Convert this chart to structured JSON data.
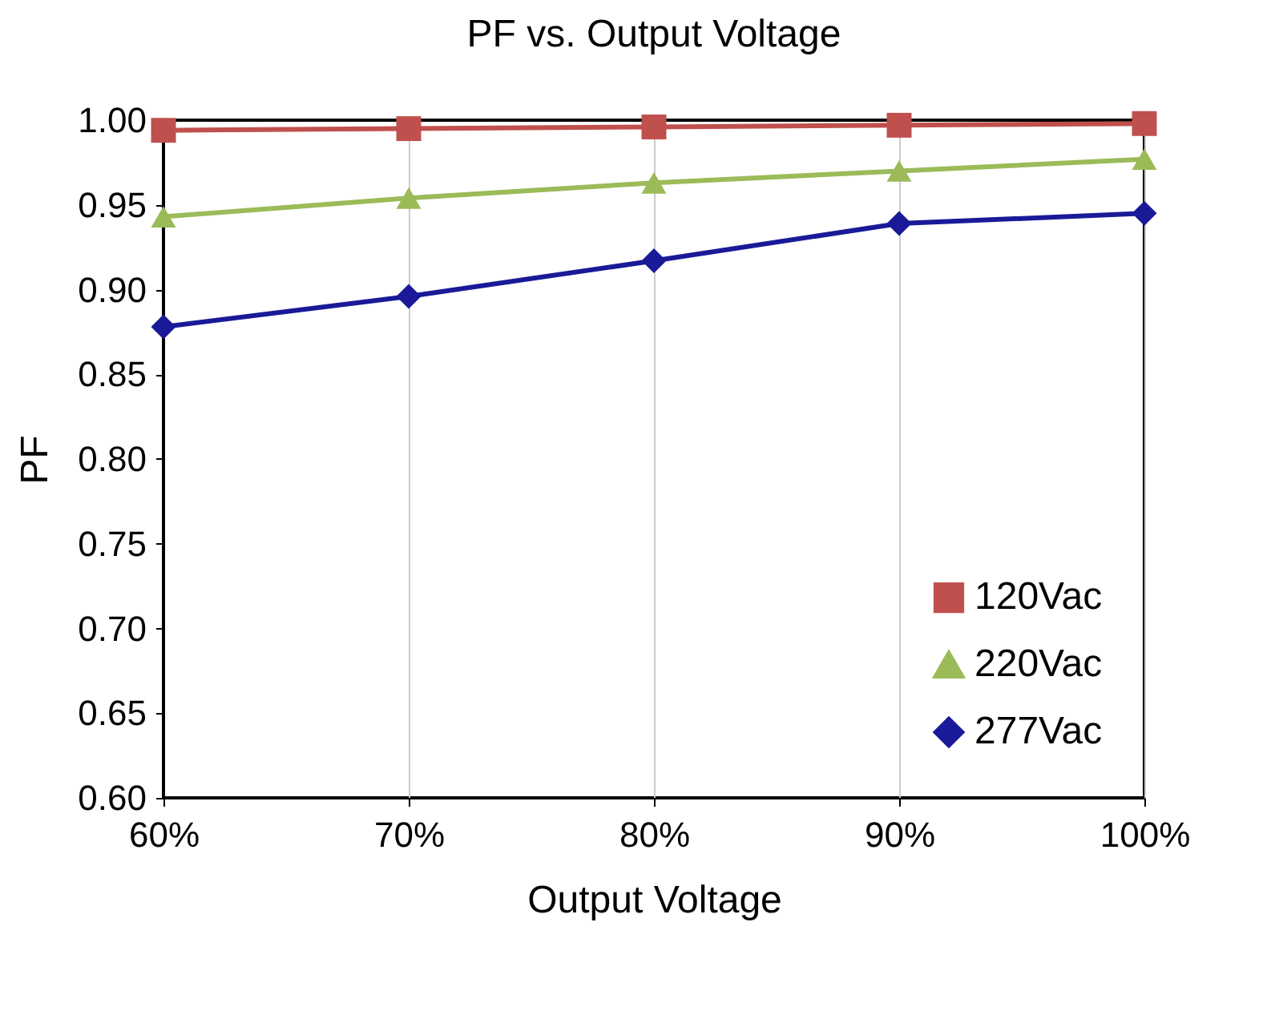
{
  "chart_data": {
    "type": "line",
    "title": "PF vs. Output Voltage",
    "xlabel": "Output Voltage",
    "ylabel": "PF",
    "categories": [
      "60%",
      "70%",
      "80%",
      "90%",
      "100%"
    ],
    "series": [
      {
        "name": "120Vac",
        "color": "#c0504d",
        "marker": "square",
        "values": [
          0.994,
          0.995,
          0.996,
          0.997,
          0.998
        ]
      },
      {
        "name": "220Vac",
        "color": "#9bbb59",
        "marker": "triangle",
        "values": [
          0.943,
          0.954,
          0.963,
          0.97,
          0.977
        ]
      },
      {
        "name": "277Vac",
        "color": "#1a1a99",
        "marker": "diamond",
        "values": [
          0.878,
          0.896,
          0.917,
          0.939,
          0.945
        ]
      }
    ],
    "ylim": [
      0.6,
      1.0
    ],
    "yticks": [
      {
        "value": 0.6,
        "label": "0.60"
      },
      {
        "value": 0.65,
        "label": "0.65"
      },
      {
        "value": 0.7,
        "label": "0.70"
      },
      {
        "value": 0.75,
        "label": "0.75"
      },
      {
        "value": 0.8,
        "label": "0.80"
      },
      {
        "value": 0.85,
        "label": "0.85"
      },
      {
        "value": 0.9,
        "label": "0.90"
      },
      {
        "value": 0.95,
        "label": "0.95"
      },
      {
        "value": 1.0,
        "label": "1.00"
      }
    ],
    "grid": "x",
    "legend": "bottom right",
    "line_style": "solid"
  }
}
